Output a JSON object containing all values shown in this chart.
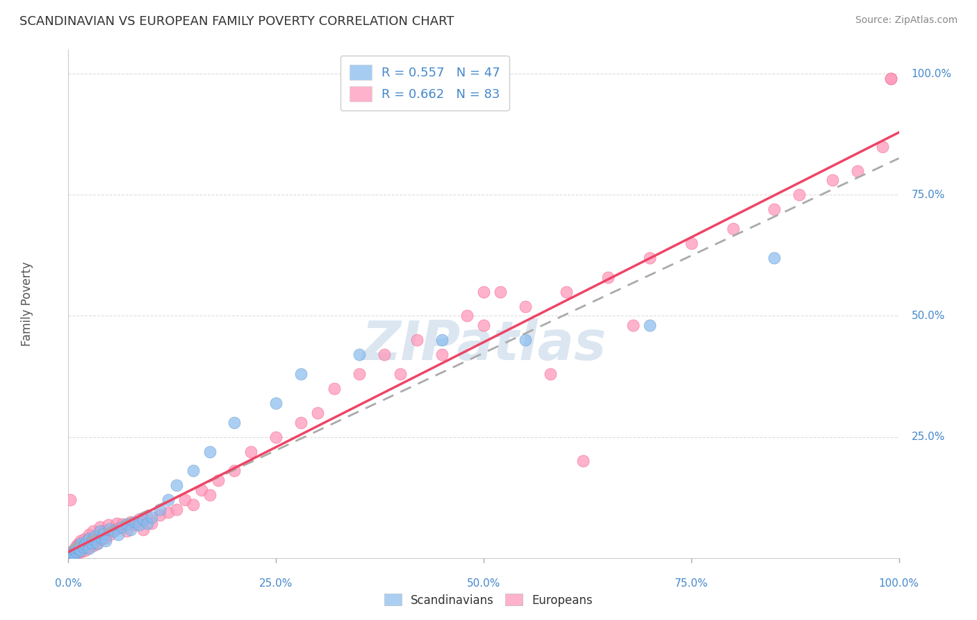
{
  "title": "SCANDINAVIAN VS EUROPEAN FAMILY POVERTY CORRELATION CHART",
  "source": "Source: ZipAtlas.com",
  "ylabel": "Family Poverty",
  "xlim": [
    0,
    1
  ],
  "ylim": [
    0,
    1.05
  ],
  "scandinavian_color": "#88bbee",
  "scandinavian_edge": "#6699cc",
  "european_color": "#ff99bb",
  "european_edge": "#ee6688",
  "trendline_scand_color": "#4477bb",
  "trendline_euro_color": "#ee4466",
  "grid_color": "#dddddd",
  "background_color": "#ffffff",
  "watermark": "ZIPatlas",
  "watermark_color_r": 190,
  "watermark_color_g": 210,
  "watermark_color_b": 230,
  "title_color": "#333333",
  "tick_color": "#4488cc",
  "R_scand": 0.557,
  "N_scand": 47,
  "R_euro": 0.662,
  "N_euro": 83,
  "scand_x": [
    0.003,
    0.005,
    0.007,
    0.008,
    0.01,
    0.01,
    0.012,
    0.013,
    0.015,
    0.015,
    0.018,
    0.02,
    0.022,
    0.025,
    0.025,
    0.028,
    0.03,
    0.032,
    0.035,
    0.038,
    0.04,
    0.042,
    0.045,
    0.05,
    0.055,
    0.06,
    0.065,
    0.07,
    0.075,
    0.08,
    0.085,
    0.09,
    0.095,
    0.1,
    0.11,
    0.12,
    0.13,
    0.15,
    0.17,
    0.2,
    0.25,
    0.28,
    0.35,
    0.45,
    0.55,
    0.7,
    0.85
  ],
  "scand_y": [
    0.005,
    0.01,
    0.008,
    0.015,
    0.012,
    0.02,
    0.018,
    0.025,
    0.015,
    0.03,
    0.022,
    0.028,
    0.035,
    0.02,
    0.04,
    0.032,
    0.038,
    0.045,
    0.03,
    0.055,
    0.042,
    0.05,
    0.035,
    0.06,
    0.055,
    0.048,
    0.065,
    0.07,
    0.058,
    0.075,
    0.068,
    0.08,
    0.072,
    0.085,
    0.1,
    0.12,
    0.15,
    0.18,
    0.22,
    0.28,
    0.32,
    0.38,
    0.42,
    0.45,
    0.45,
    0.48,
    0.62
  ],
  "euro_x": [
    0.002,
    0.003,
    0.004,
    0.005,
    0.006,
    0.007,
    0.008,
    0.009,
    0.01,
    0.01,
    0.012,
    0.012,
    0.013,
    0.015,
    0.015,
    0.017,
    0.018,
    0.02,
    0.02,
    0.022,
    0.025,
    0.025,
    0.028,
    0.03,
    0.03,
    0.032,
    0.035,
    0.038,
    0.04,
    0.042,
    0.045,
    0.048,
    0.05,
    0.055,
    0.058,
    0.06,
    0.065,
    0.07,
    0.075,
    0.08,
    0.085,
    0.09,
    0.095,
    0.1,
    0.11,
    0.12,
    0.13,
    0.14,
    0.15,
    0.16,
    0.17,
    0.18,
    0.2,
    0.22,
    0.25,
    0.28,
    0.3,
    0.32,
    0.35,
    0.38,
    0.4,
    0.42,
    0.45,
    0.48,
    0.5,
    0.52,
    0.55,
    0.58,
    0.6,
    0.62,
    0.65,
    0.68,
    0.7,
    0.75,
    0.8,
    0.85,
    0.88,
    0.92,
    0.95,
    0.98,
    0.99,
    0.99,
    0.5
  ],
  "euro_y": [
    0.12,
    0.005,
    0.008,
    0.012,
    0.015,
    0.01,
    0.02,
    0.018,
    0.008,
    0.025,
    0.015,
    0.03,
    0.022,
    0.012,
    0.035,
    0.028,
    0.018,
    0.015,
    0.04,
    0.032,
    0.022,
    0.048,
    0.038,
    0.025,
    0.055,
    0.042,
    0.03,
    0.065,
    0.038,
    0.055,
    0.042,
    0.068,
    0.048,
    0.058,
    0.072,
    0.062,
    0.07,
    0.055,
    0.075,
    0.068,
    0.08,
    0.058,
    0.085,
    0.072,
    0.088,
    0.095,
    0.1,
    0.12,
    0.11,
    0.14,
    0.13,
    0.16,
    0.18,
    0.22,
    0.25,
    0.28,
    0.3,
    0.35,
    0.38,
    0.42,
    0.38,
    0.45,
    0.42,
    0.5,
    0.48,
    0.55,
    0.52,
    0.38,
    0.55,
    0.2,
    0.58,
    0.48,
    0.62,
    0.65,
    0.68,
    0.72,
    0.75,
    0.78,
    0.8,
    0.85,
    0.99,
    0.99,
    0.55
  ]
}
